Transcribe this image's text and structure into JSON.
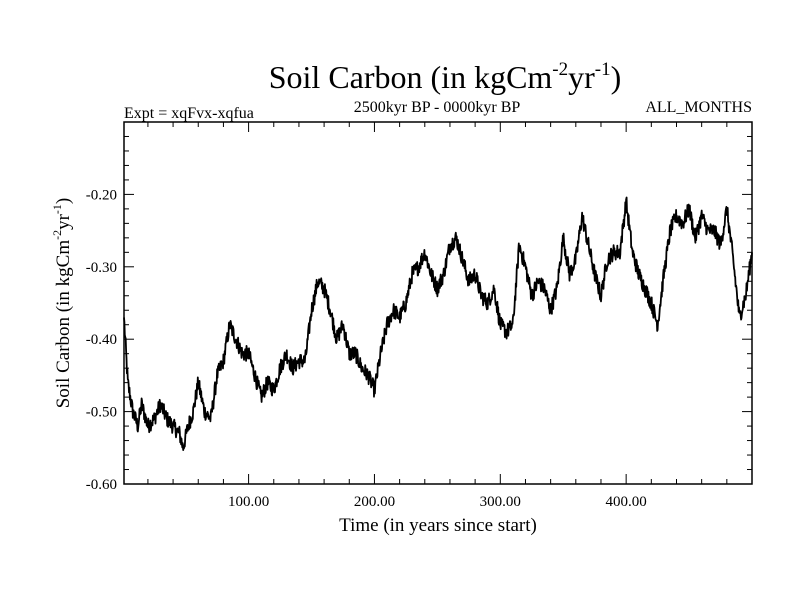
{
  "chart_data": {
    "type": "line",
    "title": {
      "main": "Soil Carbon (in kgCm",
      "sup1": "-2",
      "mid": "yr",
      "sup2": "-1",
      "end": ")"
    },
    "subtitle_left": "Expt = xqFvx-xqfua",
    "subtitle_center": "2500kyr BP - 0000kyr BP",
    "subtitle_right": "ALL_MONTHS",
    "xlabel": "Time (in years since start)",
    "ylabel": {
      "main": "Soil Carbon (in kgCm",
      "sup1": "-2",
      "mid": "yr",
      "sup2": "-1",
      "end": ")"
    },
    "xlim": [
      1,
      500
    ],
    "ylim": [
      -0.6,
      -0.1
    ],
    "x_ticks": [
      {
        "value": 100,
        "label": "100.00"
      },
      {
        "value": 200,
        "label": "200.00"
      },
      {
        "value": 300,
        "label": "300.00"
      },
      {
        "value": 400,
        "label": "400.00"
      }
    ],
    "y_ticks": [
      {
        "value": -0.6,
        "label": "-0.60"
      },
      {
        "value": -0.5,
        "label": "-0.50"
      },
      {
        "value": -0.4,
        "label": "-0.40"
      },
      {
        "value": -0.3,
        "label": "-0.30"
      },
      {
        "value": -0.2,
        "label": "-0.20"
      }
    ],
    "series": [
      {
        "name": "Soil Carbon",
        "color": "#000000",
        "x": [
          1,
          4,
          8,
          12,
          15,
          20,
          25,
          30,
          35,
          40,
          45,
          48,
          52,
          56,
          60,
          65,
          70,
          75,
          80,
          85,
          90,
          95,
          100,
          105,
          110,
          115,
          120,
          125,
          130,
          135,
          140,
          145,
          150,
          155,
          160,
          165,
          170,
          175,
          180,
          185,
          190,
          195,
          200,
          205,
          210,
          215,
          220,
          225,
          230,
          235,
          240,
          245,
          250,
          255,
          260,
          265,
          270,
          275,
          280,
          285,
          290,
          295,
          300,
          305,
          310,
          315,
          320,
          325,
          330,
          335,
          340,
          345,
          350,
          355,
          360,
          365,
          370,
          375,
          380,
          385,
          390,
          395,
          400,
          405,
          410,
          415,
          420,
          425,
          430,
          435,
          440,
          445,
          450,
          455,
          460,
          465,
          470,
          475,
          480,
          485,
          490,
          495,
          500
        ],
        "y": [
          -0.37,
          -0.46,
          -0.5,
          -0.52,
          -0.49,
          -0.52,
          -0.51,
          -0.49,
          -0.51,
          -0.52,
          -0.53,
          -0.55,
          -0.52,
          -0.5,
          -0.46,
          -0.5,
          -0.51,
          -0.45,
          -0.43,
          -0.38,
          -0.4,
          -0.42,
          -0.42,
          -0.45,
          -0.48,
          -0.46,
          -0.47,
          -0.44,
          -0.42,
          -0.44,
          -0.43,
          -0.43,
          -0.36,
          -0.32,
          -0.33,
          -0.36,
          -0.4,
          -0.38,
          -0.42,
          -0.42,
          -0.44,
          -0.45,
          -0.47,
          -0.42,
          -0.38,
          -0.36,
          -0.37,
          -0.35,
          -0.31,
          -0.3,
          -0.28,
          -0.31,
          -0.33,
          -0.31,
          -0.27,
          -0.26,
          -0.29,
          -0.32,
          -0.31,
          -0.34,
          -0.35,
          -0.33,
          -0.38,
          -0.39,
          -0.38,
          -0.27,
          -0.3,
          -0.34,
          -0.32,
          -0.33,
          -0.36,
          -0.33,
          -0.26,
          -0.31,
          -0.29,
          -0.23,
          -0.27,
          -0.31,
          -0.34,
          -0.29,
          -0.28,
          -0.28,
          -0.21,
          -0.28,
          -0.31,
          -0.33,
          -0.35,
          -0.38,
          -0.31,
          -0.25,
          -0.23,
          -0.24,
          -0.22,
          -0.26,
          -0.23,
          -0.25,
          -0.25,
          -0.27,
          -0.22,
          -0.29,
          -0.37,
          -0.34,
          -0.28
        ]
      }
    ]
  }
}
